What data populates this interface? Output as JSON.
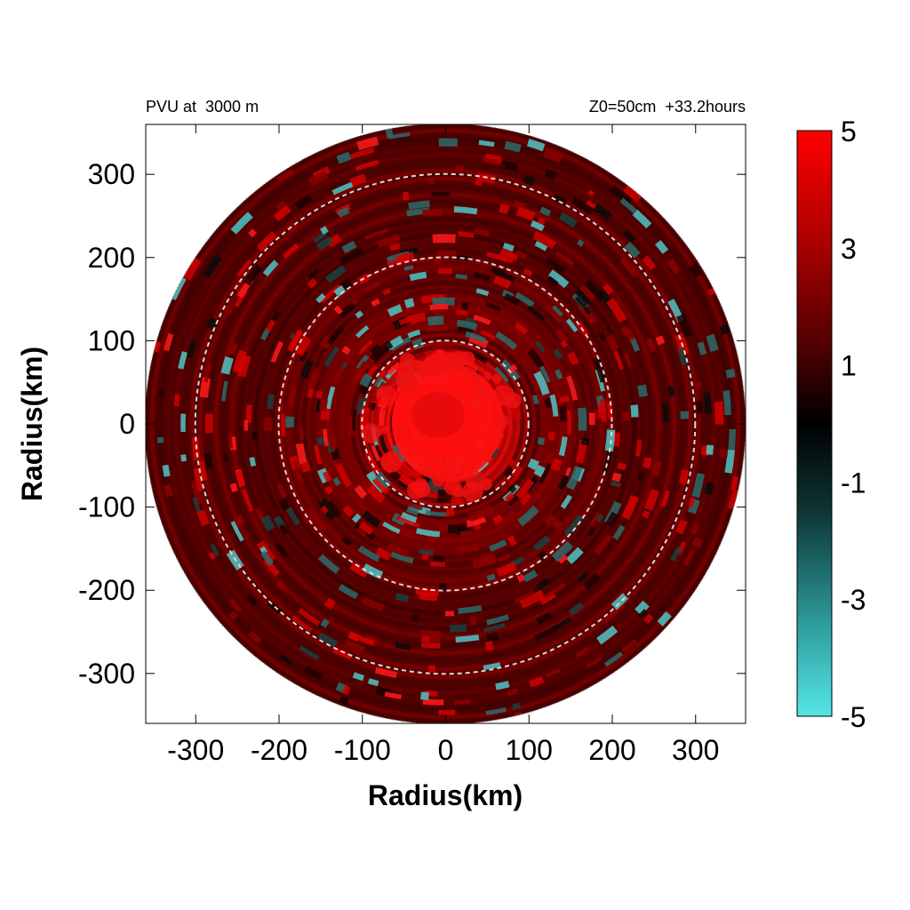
{
  "chart_data": {
    "type": "heatmap",
    "title_left": "PVU at  3000 m",
    "title_right": "Z0=50cm  +33.2hours",
    "xlabel": "Radius(km)",
    "ylabel": "Radius(km)",
    "xlim": [
      -360,
      360
    ],
    "ylim": [
      -360,
      360
    ],
    "x_ticks": [
      -300,
      -200,
      -100,
      0,
      100,
      200,
      300
    ],
    "y_ticks": [
      300,
      200,
      100,
      0,
      -100,
      -200,
      -300
    ],
    "reference_circles_km": [
      100,
      200,
      300
    ],
    "domain_radius_km": 360,
    "colorbar": {
      "min": -5,
      "max": 5,
      "ticks": [
        5,
        3,
        1,
        -1,
        -3,
        -5
      ],
      "colors": [
        "#55e6e6",
        "#000000",
        "#ff0000"
      ]
    },
    "field_description_values": {
      "core_value": 5,
      "ring_background_value": 1.5,
      "negative_patch_value": -3
    }
  }
}
